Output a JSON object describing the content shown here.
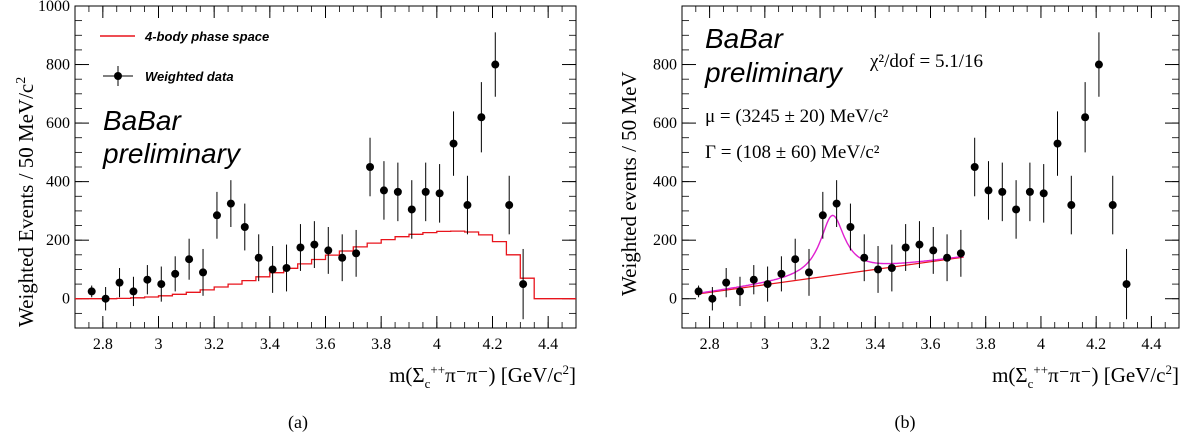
{
  "panels": [
    {
      "caption": "(a)",
      "ylabel": "Weighted Events / 50 MeV/c",
      "ylabel_sup": "2",
      "xlabel_main": "m(Σ",
      "xlabel_sub": "c",
      "xlabel_sup": "++",
      "xlabel_rest": "π⁻π⁻)  [GeV/c",
      "xlabel_sup2": "2",
      "xlabel_end": "]",
      "babar_line1": "BaBar",
      "babar_line2": "preliminary",
      "legend": [
        {
          "label": "4-body phase space",
          "kind": "line",
          "color": "#e8141c"
        },
        {
          "label": "Weighted data",
          "kind": "marker",
          "color": "#000000"
        }
      ]
    },
    {
      "caption": "(b)",
      "ylabel": "Weighted events / 50 MeV",
      "xlabel_main": "m(Σ",
      "xlabel_sub": "c",
      "xlabel_sup": "++",
      "xlabel_rest": "π⁻π⁻)  [GeV/c",
      "xlabel_sup2": "2",
      "xlabel_end": "]",
      "babar_line1": "BaBar",
      "babar_line2": "preliminary",
      "chi2_text": "χ²/dof = 5.1/16",
      "mu_text": "μ = (3245 ± 20) MeV/c²",
      "gamma_text": "Γ = (108 ± 60) MeV/c²"
    }
  ],
  "chart_data": [
    {
      "type": "scatter",
      "title": "",
      "xlabel": "m(Σc++π-π-) [GeV/c²]",
      "ylabel": "Weighted Events / 50 MeV/c²",
      "xlim": [
        2.7,
        4.5
      ],
      "ylim": [
        -100,
        1000
      ],
      "xticks": [
        2.8,
        3,
        3.2,
        3.4,
        3.6,
        3.8,
        4,
        4.2,
        4.4
      ],
      "yticks": [
        0,
        200,
        400,
        600,
        800,
        1000
      ],
      "series": [
        {
          "name": "Weighted data",
          "kind": "points",
          "color": "#000000",
          "x": [
            2.76,
            2.81,
            2.86,
            2.91,
            2.96,
            3.01,
            3.06,
            3.11,
            3.16,
            3.21,
            3.26,
            3.31,
            3.36,
            3.41,
            3.46,
            3.51,
            3.56,
            3.61,
            3.66,
            3.71,
            3.76,
            3.81,
            3.86,
            3.91,
            3.96,
            4.01,
            4.06,
            4.11,
            4.16,
            4.21,
            4.26,
            4.31
          ],
          "y": [
            25,
            0,
            55,
            25,
            65,
            50,
            85,
            135,
            90,
            285,
            325,
            245,
            140,
            100,
            105,
            175,
            185,
            165,
            140,
            155,
            450,
            370,
            365,
            305,
            365,
            360,
            530,
            320,
            620,
            800,
            320,
            50
          ],
          "yerr": [
            20,
            40,
            50,
            50,
            50,
            60,
            60,
            70,
            80,
            80,
            80,
            80,
            80,
            80,
            80,
            80,
            80,
            80,
            80,
            80,
            100,
            100,
            100,
            100,
            100,
            100,
            110,
            100,
            120,
            110,
            100,
            120
          ]
        },
        {
          "name": "4-body phase space",
          "kind": "step",
          "color": "#e8141c",
          "x": [
            2.7,
            2.75,
            2.8,
            2.85,
            2.9,
            2.95,
            3.0,
            3.05,
            3.1,
            3.15,
            3.2,
            3.25,
            3.3,
            3.35,
            3.4,
            3.45,
            3.5,
            3.55,
            3.6,
            3.65,
            3.7,
            3.75,
            3.8,
            3.85,
            3.9,
            3.95,
            4.0,
            4.05,
            4.1,
            4.15,
            4.2,
            4.25,
            4.3,
            4.35,
            4.4,
            4.45
          ],
          "y": [
            0,
            0,
            0,
            1,
            3,
            6,
            10,
            15,
            22,
            30,
            40,
            50,
            62,
            75,
            89,
            104,
            119,
            134,
            149,
            163,
            177,
            190,
            202,
            212,
            220,
            226,
            230,
            231,
            228,
            218,
            195,
            150,
            70,
            0,
            0,
            0
          ]
        }
      ]
    },
    {
      "type": "scatter",
      "title": "",
      "xlabel": "m(Σc++π-π-) [GeV/c²]",
      "ylabel": "Weighted events / 50 MeV",
      "xlim": [
        2.7,
        4.5
      ],
      "ylim": [
        -100,
        1000
      ],
      "xticks": [
        2.8,
        3,
        3.2,
        3.4,
        3.6,
        3.8,
        4,
        4.2,
        4.4
      ],
      "yticks": [
        0,
        200,
        400,
        600,
        800
      ],
      "series": [
        {
          "name": "",
          "kind": "points",
          "color": "#000000",
          "x": [
            2.76,
            2.81,
            2.86,
            2.91,
            2.96,
            3.01,
            3.06,
            3.11,
            3.16,
            3.21,
            3.26,
            3.31,
            3.36,
            3.41,
            3.46,
            3.51,
            3.56,
            3.61,
            3.66,
            3.71,
            3.76,
            3.81,
            3.86,
            3.91,
            3.96,
            4.01,
            4.06,
            4.11,
            4.16,
            4.21,
            4.26,
            4.31
          ],
          "y": [
            25,
            0,
            55,
            25,
            65,
            50,
            85,
            135,
            90,
            285,
            325,
            245,
            140,
            100,
            105,
            175,
            185,
            165,
            140,
            155,
            450,
            370,
            365,
            305,
            365,
            360,
            530,
            320,
            620,
            800,
            320,
            50
          ],
          "yerr": [
            20,
            40,
            50,
            50,
            50,
            60,
            60,
            70,
            80,
            80,
            80,
            80,
            80,
            80,
            80,
            80,
            80,
            80,
            80,
            80,
            100,
            100,
            100,
            100,
            100,
            100,
            110,
            100,
            120,
            110,
            100,
            120
          ]
        },
        {
          "name": "",
          "kind": "line",
          "color": "#e8141c",
          "x": [
            2.75,
            3.72
          ],
          "y": [
            15,
            142
          ]
        },
        {
          "name": "",
          "kind": "fit",
          "color": "#e020d0",
          "mu": 3.245,
          "gamma": 0.108,
          "xrange": [
            2.75,
            3.72
          ]
        }
      ]
    }
  ]
}
